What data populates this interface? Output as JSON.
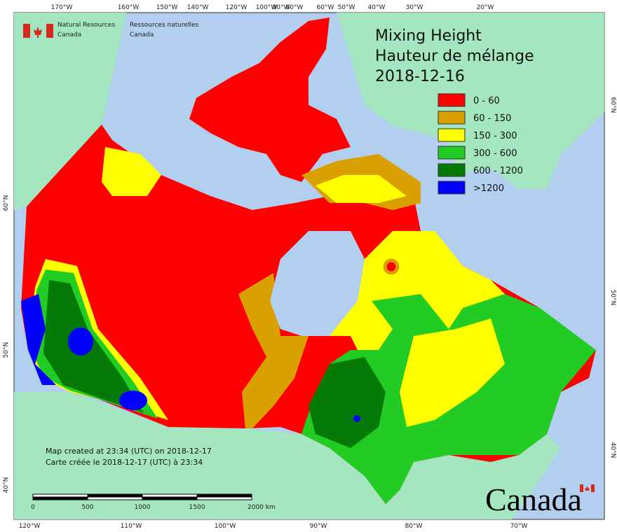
{
  "header": {
    "agency_en": [
      "Natural Resources",
      "Canada"
    ],
    "agency_fr": [
      "Ressources naturelles",
      "Canada"
    ]
  },
  "map": {
    "title": [
      "Mixing Height",
      "Hauteur de mélange",
      "2018-12-16"
    ],
    "legend": [
      {
        "label": "0 - 60",
        "color": "#ff0000"
      },
      {
        "label": "60 - 150",
        "color": "#daa000"
      },
      {
        "label": "150 - 300",
        "color": "#ffff00"
      },
      {
        "label": "300 - 600",
        "color": "#22cc22"
      },
      {
        "label": "600 - 1200",
        "color": "#067a06"
      },
      {
        "label": ">1200",
        "color": "#0000ff"
      }
    ],
    "top_labels": [
      "170°W",
      "160°W",
      "150°W",
      "140°W",
      "120°W",
      "100°W",
      "90°W",
      "80°W",
      "60°W",
      "50°W",
      "40°W",
      "30°W",
      "20°W"
    ],
    "bottom_labels": [
      "120°W",
      "110°W",
      "100°W",
      "90°W",
      "80°W",
      "70°W"
    ],
    "left_labels": [
      "60°N",
      "50°N",
      "40°N"
    ],
    "right_labels": [
      "60°N",
      "50°N",
      "40°N"
    ],
    "credits": [
      "Map created at 23:34 (UTC) on 2018-12-17",
      "Carte créée le 2018-12-17 (UTC) à 23:34"
    ],
    "scale_labels": [
      "0",
      "500",
      "1000",
      "1500",
      "2000  km"
    ],
    "wordmark": "Canada"
  }
}
